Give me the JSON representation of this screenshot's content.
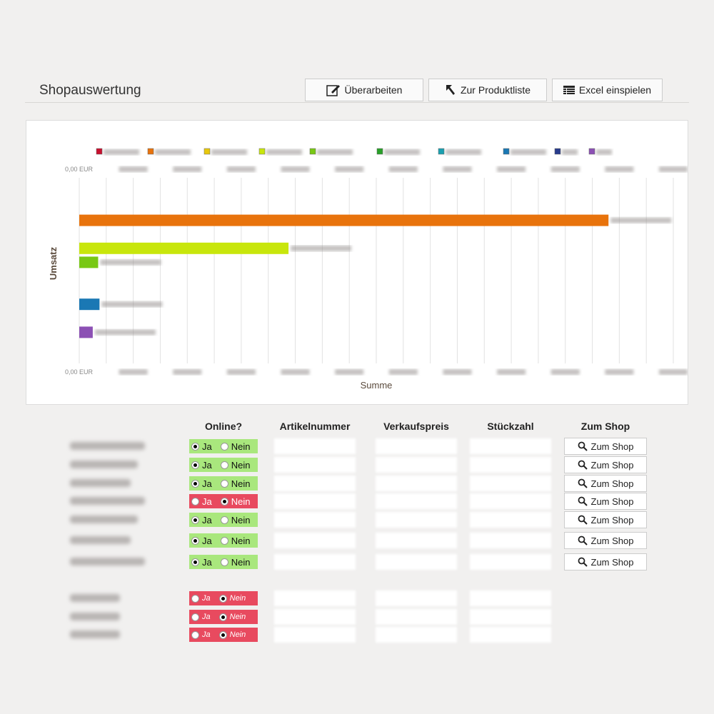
{
  "header": {
    "title": "Shopauswertung",
    "buttons": [
      "Überarbeiten",
      "Zur Produktliste",
      "Excel einspielen"
    ]
  },
  "chart_data": {
    "type": "bar",
    "orientation": "horizontal",
    "y_label": "Umsatz",
    "x_label": "Summe",
    "xlim": [
      0,
      22
    ],
    "xticks": [
      {
        "value": 0,
        "label": "0,00 EUR"
      },
      1,
      2,
      3,
      4,
      5,
      6,
      7,
      8,
      9,
      10,
      11,
      12,
      13,
      14,
      15,
      16,
      17,
      18,
      19,
      20,
      21,
      22
    ],
    "grid": true,
    "series": [
      {
        "color": "#c8102e",
        "values": [
          0
        ]
      },
      {
        "color": "#e8730c",
        "values": [
          19.6
        ]
      },
      {
        "color": "#e8c80c",
        "values": [
          0
        ]
      },
      {
        "color": "#c8e60c",
        "values": [
          7.75
        ]
      },
      {
        "color": "#78c814",
        "values": [
          0.7
        ]
      },
      {
        "color": "#28a028",
        "values": [
          0
        ]
      },
      {
        "color": "#1aa0b0",
        "values": [
          0
        ]
      },
      {
        "color": "#1a78b4",
        "values": [
          0.75
        ]
      },
      {
        "color": "#283c8c",
        "values": [
          0
        ]
      },
      {
        "color": "#8c50b4",
        "values": [
          0.5
        ]
      }
    ]
  },
  "table": {
    "headers": [
      "Online?",
      "Artikelnummer",
      "Verkaufspreis",
      "Stückzahl",
      "Zum Shop"
    ],
    "radio_labels": [
      "Ja",
      "Nein"
    ],
    "button_label": "Zum Shop",
    "rows": [
      {
        "online": true,
        "shop": true
      },
      {
        "online": true,
        "shop": true
      },
      {
        "online": true,
        "shop": true
      },
      {
        "online": false,
        "shop": true
      },
      {
        "online": true,
        "shop": true
      },
      {
        "online": true,
        "shop": true
      },
      {
        "online": true,
        "shop": true
      },
      {
        "online": false,
        "shop": false
      },
      {
        "online": false,
        "shop": false
      },
      {
        "online": false,
        "shop": false
      }
    ]
  }
}
